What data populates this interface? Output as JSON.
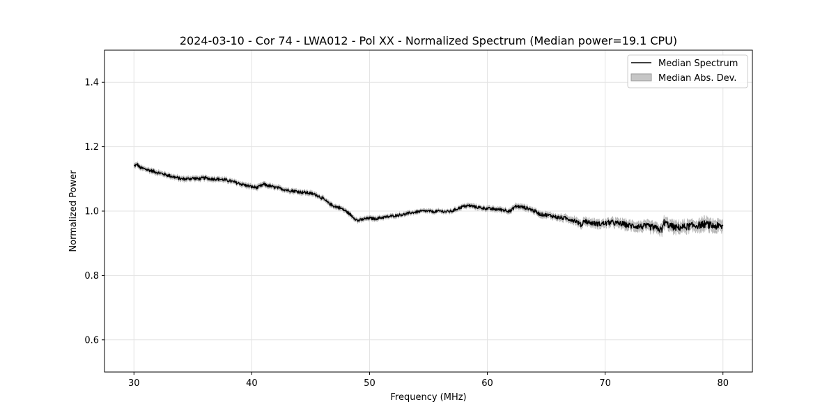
{
  "chart_data": {
    "type": "line",
    "title": "2024-03-10 - Cor 74 - LWA012 - Pol XX - Normalized Spectrum (Median power=19.1 CPU)",
    "xlabel": "Frequency (MHz)",
    "ylabel": "Normalized Power",
    "xlim": [
      27.5,
      82.5
    ],
    "ylim": [
      0.5,
      1.5
    ],
    "x_ticks": [
      30,
      40,
      50,
      60,
      70,
      80
    ],
    "y_ticks": [
      0.6,
      0.8,
      1.0,
      1.2,
      1.4
    ],
    "x_tick_labels": [
      "30",
      "40",
      "50",
      "60",
      "70",
      "80"
    ],
    "y_tick_labels": [
      "0.6",
      "0.8",
      "1.0",
      "1.2",
      "1.4"
    ],
    "grid": true,
    "legend_position": "top-right",
    "series": [
      {
        "name": "Median Spectrum",
        "color": "#000000",
        "style": "line",
        "points": [
          [
            30.0,
            1.14
          ],
          [
            30.3,
            1.145
          ],
          [
            30.5,
            1.135
          ],
          [
            31.0,
            1.13
          ],
          [
            31.5,
            1.125
          ],
          [
            32.0,
            1.12
          ],
          [
            32.5,
            1.115
          ],
          [
            33.0,
            1.11
          ],
          [
            33.5,
            1.105
          ],
          [
            34.0,
            1.1
          ],
          [
            34.5,
            1.1
          ],
          [
            35.0,
            1.102
          ],
          [
            35.5,
            1.1
          ],
          [
            36.0,
            1.103
          ],
          [
            36.5,
            1.1
          ],
          [
            37.0,
            1.1
          ],
          [
            37.5,
            1.098
          ],
          [
            38.0,
            1.095
          ],
          [
            38.5,
            1.09
          ],
          [
            39.0,
            1.085
          ],
          [
            39.5,
            1.08
          ],
          [
            40.0,
            1.075
          ],
          [
            40.5,
            1.073
          ],
          [
            41.0,
            1.083
          ],
          [
            41.5,
            1.078
          ],
          [
            42.0,
            1.073
          ],
          [
            42.5,
            1.07
          ],
          [
            43.0,
            1.065
          ],
          [
            43.5,
            1.063
          ],
          [
            44.0,
            1.06
          ],
          [
            44.5,
            1.058
          ],
          [
            45.0,
            1.055
          ],
          [
            45.5,
            1.05
          ],
          [
            46.0,
            1.04
          ],
          [
            46.5,
            1.025
          ],
          [
            47.0,
            1.015
          ],
          [
            47.5,
            1.01
          ],
          [
            48.0,
            1.0
          ],
          [
            48.5,
            0.985
          ],
          [
            49.0,
            0.97
          ],
          [
            49.5,
            0.975
          ],
          [
            50.0,
            0.978
          ],
          [
            50.5,
            0.976
          ],
          [
            51.0,
            0.98
          ],
          [
            51.5,
            0.982
          ],
          [
            52.0,
            0.985
          ],
          [
            52.5,
            0.988
          ],
          [
            53.0,
            0.99
          ],
          [
            53.5,
            0.995
          ],
          [
            54.0,
            0.997
          ],
          [
            54.5,
            1.0
          ],
          [
            55.0,
            1.0
          ],
          [
            55.5,
            0.998
          ],
          [
            56.0,
            1.0
          ],
          [
            56.5,
            0.998
          ],
          [
            57.0,
            1.0
          ],
          [
            57.5,
            1.008
          ],
          [
            58.0,
            1.015
          ],
          [
            58.5,
            1.017
          ],
          [
            59.0,
            1.013
          ],
          [
            59.5,
            1.01
          ],
          [
            60.0,
            1.008
          ],
          [
            60.5,
            1.006
          ],
          [
            61.0,
            1.005
          ],
          [
            61.5,
            1.003
          ],
          [
            62.0,
            1.0
          ],
          [
            62.3,
            1.013
          ],
          [
            62.5,
            1.015
          ],
          [
            63.0,
            1.012
          ],
          [
            63.5,
            1.008
          ],
          [
            64.0,
            1.0
          ],
          [
            64.5,
            0.99
          ],
          [
            65.0,
            0.988
          ],
          [
            65.5,
            0.985
          ],
          [
            66.0,
            0.98
          ],
          [
            66.5,
            0.978
          ],
          [
            67.0,
            0.975
          ],
          [
            67.5,
            0.97
          ],
          [
            68.0,
            0.955
          ],
          [
            68.2,
            0.972
          ],
          [
            68.5,
            0.966
          ],
          [
            69.0,
            0.962
          ],
          [
            69.5,
            0.96
          ],
          [
            70.0,
            0.962
          ],
          [
            70.5,
            0.965
          ],
          [
            71.0,
            0.962
          ],
          [
            71.5,
            0.96
          ],
          [
            72.0,
            0.955
          ],
          [
            72.5,
            0.954
          ],
          [
            73.0,
            0.952
          ],
          [
            73.5,
            0.953
          ],
          [
            74.0,
            0.95
          ],
          [
            74.5,
            0.945
          ],
          [
            74.8,
            0.94
          ],
          [
            75.0,
            0.965
          ],
          [
            75.5,
            0.955
          ],
          [
            76.0,
            0.948
          ],
          [
            76.5,
            0.95
          ],
          [
            77.0,
            0.952
          ],
          [
            77.5,
            0.955
          ],
          [
            78.0,
            0.956
          ],
          [
            78.5,
            0.96
          ],
          [
            79.0,
            0.955
          ],
          [
            79.5,
            0.953
          ],
          [
            80.0,
            0.952
          ]
        ]
      },
      {
        "name": "Median Abs. Dev.",
        "color": "#b0b0b0",
        "style": "band",
        "half_width": [
          [
            30.0,
            0.006
          ],
          [
            45.0,
            0.006
          ],
          [
            55.0,
            0.005
          ],
          [
            65.0,
            0.007
          ],
          [
            70.0,
            0.01
          ],
          [
            75.0,
            0.013
          ],
          [
            80.0,
            0.015
          ]
        ]
      }
    ]
  }
}
